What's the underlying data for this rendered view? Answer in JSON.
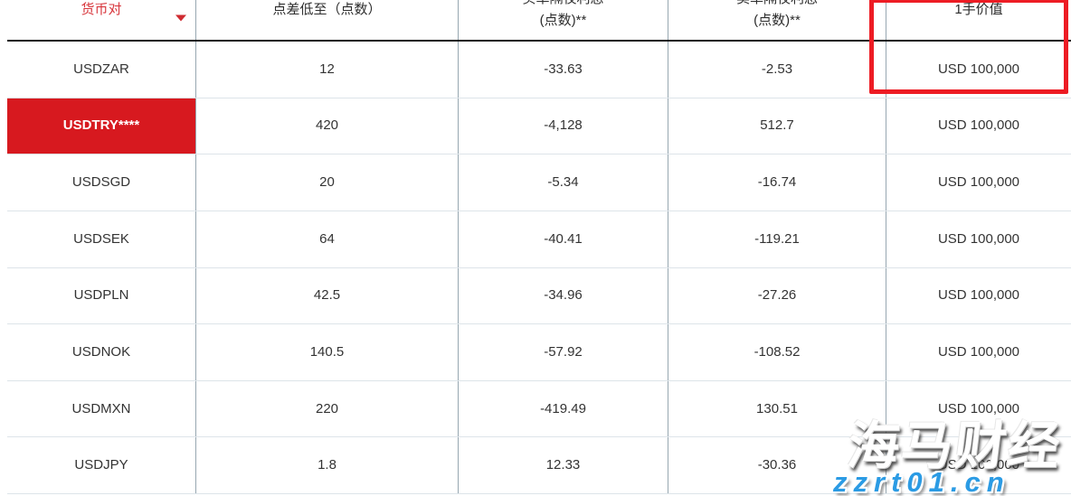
{
  "table": {
    "columns": [
      {
        "label": "货币对",
        "sortable": true
      },
      {
        "label": "点差低至（点数）"
      },
      {
        "line1": "买单隔夜利息",
        "line2": "(点数)**"
      },
      {
        "line1": "卖单隔夜利息",
        "line2": "(点数)**"
      },
      {
        "label": "1手价值",
        "highlighted": true
      }
    ],
    "rows": [
      {
        "pair": "USDZAR",
        "spread": "12",
        "buy_overnight": "-33.63",
        "sell_overnight": "-2.53",
        "lot_value": "USD 100,000",
        "highlighted": false
      },
      {
        "pair": "USDTRY****",
        "spread": "420",
        "buy_overnight": "-4,128",
        "sell_overnight": "512.7",
        "lot_value": "USD 100,000",
        "highlighted": true
      },
      {
        "pair": "USDSGD",
        "spread": "20",
        "buy_overnight": "-5.34",
        "sell_overnight": "-16.74",
        "lot_value": "USD 100,000",
        "highlighted": false
      },
      {
        "pair": "USDSEK",
        "spread": "64",
        "buy_overnight": "-40.41",
        "sell_overnight": "-119.21",
        "lot_value": "USD 100,000",
        "highlighted": false
      },
      {
        "pair": "USDPLN",
        "spread": "42.5",
        "buy_overnight": "-34.96",
        "sell_overnight": "-27.26",
        "lot_value": "USD 100,000",
        "highlighted": false
      },
      {
        "pair": "USDNOK",
        "spread": "140.5",
        "buy_overnight": "-57.92",
        "sell_overnight": "-108.52",
        "lot_value": "USD 100,000",
        "highlighted": false
      },
      {
        "pair": "USDMXN",
        "spread": "220",
        "buy_overnight": "-419.49",
        "sell_overnight": "130.51",
        "lot_value": "USD 100,000",
        "highlighted": false
      },
      {
        "pair": "USDJPY",
        "spread": "1.8",
        "buy_overnight": "12.33",
        "sell_overnight": "-30.36",
        "lot_value": "USD 100,000",
        "highlighted": false
      }
    ]
  },
  "watermark": {
    "brand": "海马财经",
    "url": "zzrt01.cn"
  },
  "colors": {
    "header_accent_red": "#d8373d",
    "highlight_cell_red": "#d7191f",
    "focus_box_red": "#ed1c24",
    "watermark_blue": "#2b9be4",
    "body_text": "#333333",
    "vertical_line": "#97a7b1",
    "horizontal_line": "#dde4e9"
  }
}
